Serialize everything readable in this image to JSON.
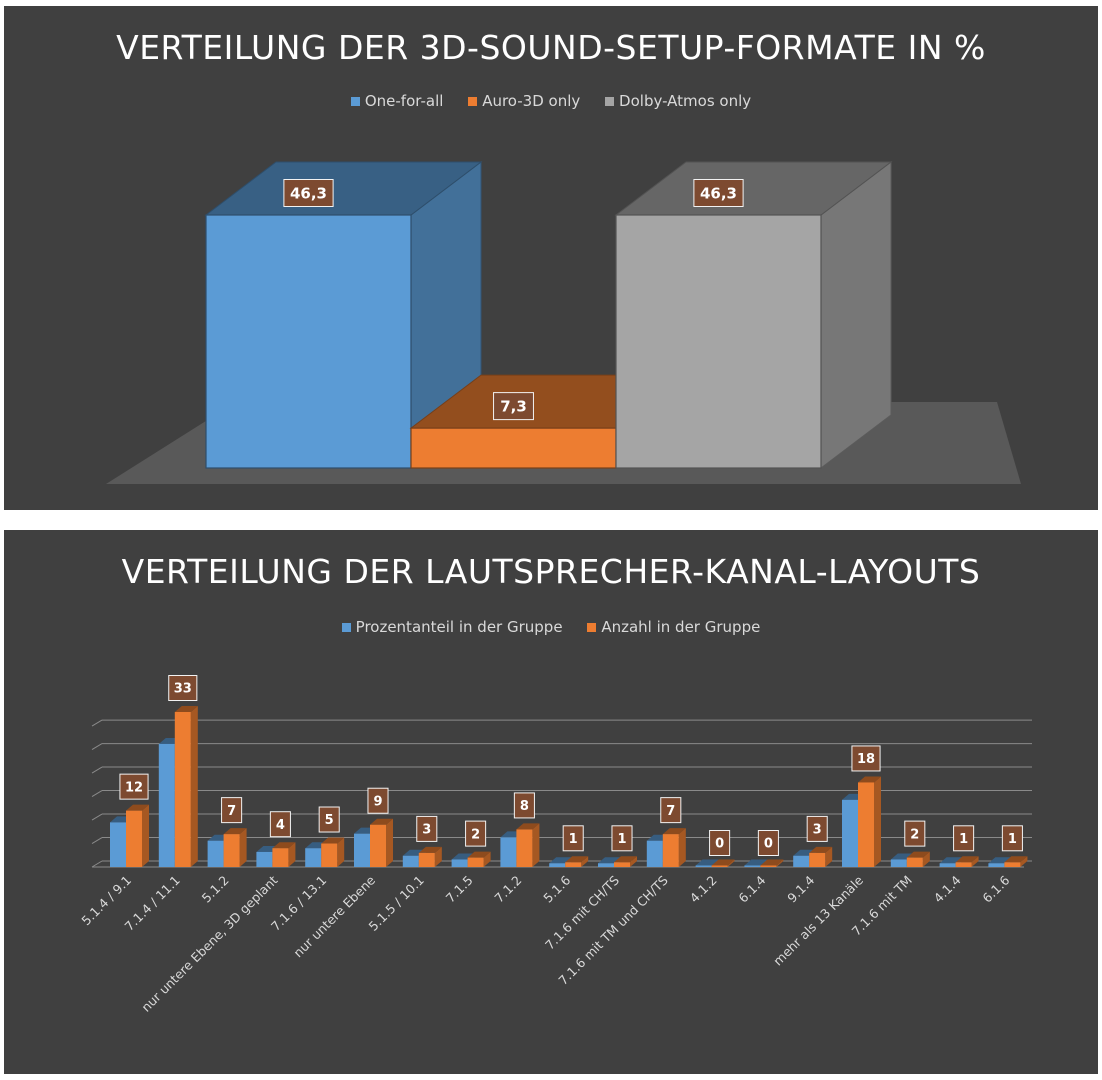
{
  "chart_data": [
    {
      "type": "bar",
      "style": "3d",
      "title": "VERTEILUNG DER 3D-SOUND-SETUP-FORMATE IN %",
      "legend_position": "top",
      "series": [
        {
          "name": "One-for-all",
          "value": 46.3,
          "label": "46,3",
          "color": "#5b9bd5"
        },
        {
          "name": "Auro-3D only",
          "value": 7.3,
          "label": "7,3",
          "color": "#ed7d31"
        },
        {
          "name": "Dolby-Atmos only",
          "value": 46.3,
          "label": "46,3",
          "color": "#a5a5a5"
        }
      ],
      "ylim": [
        0,
        50
      ],
      "grid": false
    },
    {
      "type": "bar",
      "style": "3d",
      "title": "VERTEILUNG DER LAUTSPRECHER-KANAL-LAYOUTS",
      "legend_position": "top",
      "categories": [
        "5.1.4 / 9.1",
        "7.1.4 / 11.1",
        "5.1.2",
        "nur untere Ebene, 3D geplant",
        "7.1.6 / 13.1",
        "nur untere Ebene",
        "5.1.5 / 10.1",
        "7.1.5",
        "7.1.2",
        "5.1.6",
        "7.1.6 mit CH/TS",
        "7.1.6 mit TM und CH/TS",
        "4.1.2",
        "6.1.4",
        "9.1.4",
        "mehr als 13 Kanäle",
        "7.1.6 mit TM",
        "4.1.4",
        "6.1.6"
      ],
      "series": [
        {
          "name": "Prozentanteil in der Gruppe",
          "color": "#5b9bd5",
          "values": [
            9.5,
            26.2,
            5.6,
            3.2,
            4.0,
            7.1,
            2.4,
            1.6,
            6.3,
            0.8,
            0.8,
            5.6,
            0,
            0,
            2.4,
            14.3,
            1.6,
            0.8,
            0.8
          ]
        },
        {
          "name": "Anzahl in der Gruppe",
          "color": "#ed7d31",
          "values": [
            12,
            33,
            7,
            4,
            5,
            9,
            3,
            2,
            8,
            1,
            1,
            7,
            0,
            0,
            3,
            18,
            2,
            1,
            1
          ]
        }
      ],
      "ylim": [
        0,
        35
      ],
      "grid": true
    }
  ]
}
